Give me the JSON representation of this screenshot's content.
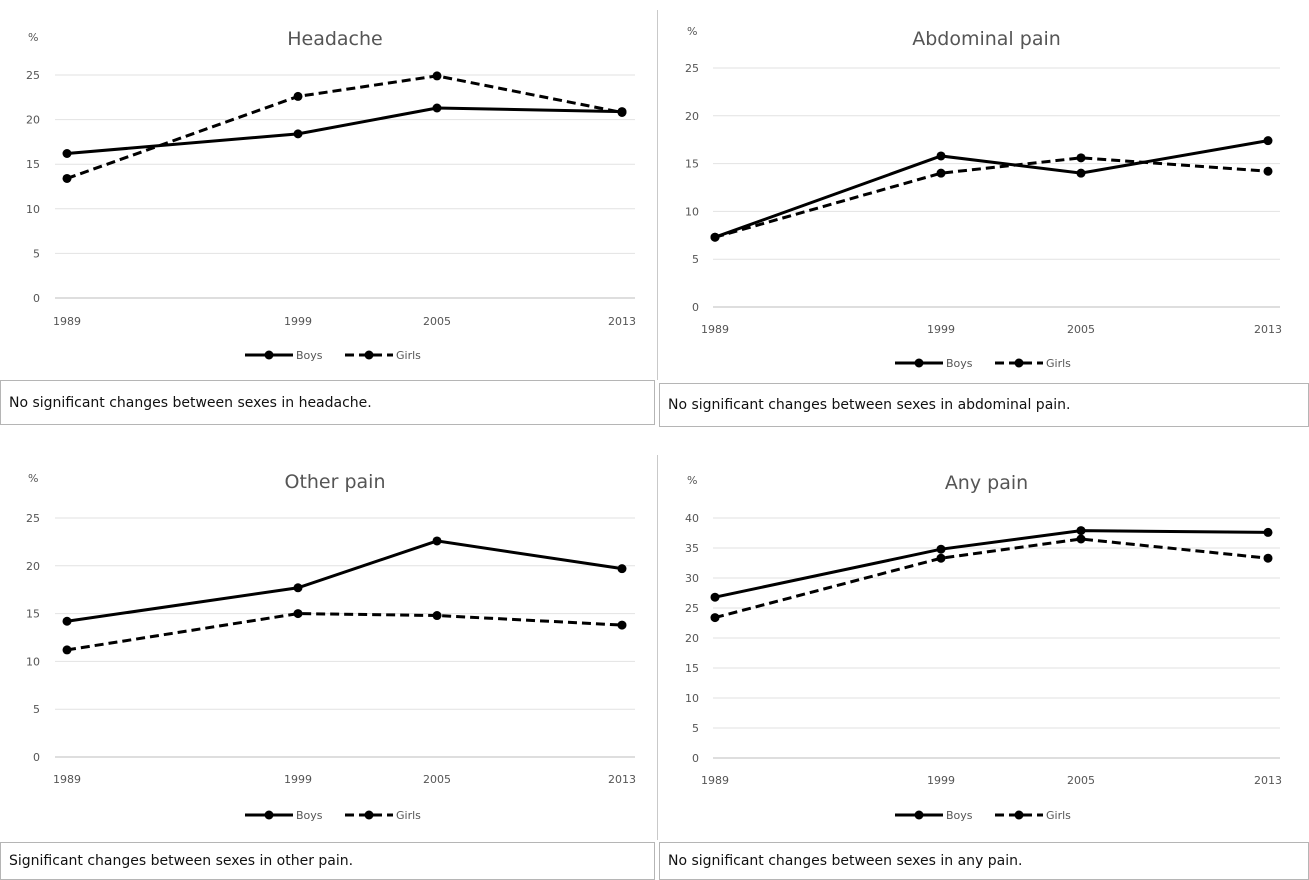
{
  "chart_data": [
    {
      "type": "line",
      "title": "Headache",
      "ylabel": "%",
      "x": [
        "1989",
        "1999",
        "2005",
        "2013"
      ],
      "ylim": [
        0,
        25
      ],
      "yticks": [
        "0",
        "5",
        "10",
        "15",
        "20",
        "25"
      ],
      "series": [
        {
          "name": "Boys",
          "style": "solid",
          "values": [
            16.2,
            18.4,
            21.3,
            20.9
          ]
        },
        {
          "name": "Girls",
          "style": "dashed",
          "values": [
            13.4,
            22.6,
            24.9,
            20.8
          ]
        }
      ],
      "legend_position": "bottom",
      "caption": "No significant changes between sexes in headache."
    },
    {
      "type": "line",
      "title": "Abdominal pain",
      "ylabel": "%",
      "x": [
        "1989",
        "1999",
        "2005",
        "2013"
      ],
      "ylim": [
        0,
        25
      ],
      "yticks": [
        "0",
        "5",
        "10",
        "15",
        "20",
        "25"
      ],
      "series": [
        {
          "name": "Boys",
          "style": "solid",
          "values": [
            7.3,
            15.8,
            14.0,
            17.4
          ]
        },
        {
          "name": "Girls",
          "style": "dashed",
          "values": [
            7.3,
            14.0,
            15.6,
            14.2
          ]
        }
      ],
      "legend_position": "bottom",
      "caption": "No significant changes between sexes in abdominal pain."
    },
    {
      "type": "line",
      "title": "Other pain",
      "ylabel": "%",
      "x": [
        "1989",
        "1999",
        "2005",
        "2013"
      ],
      "ylim": [
        0,
        25
      ],
      "yticks": [
        "0",
        "5",
        "10",
        "15",
        "20",
        "25"
      ],
      "series": [
        {
          "name": "Boys",
          "style": "solid",
          "values": [
            14.2,
            17.7,
            22.6,
            19.7
          ]
        },
        {
          "name": "Girls",
          "style": "dashed",
          "values": [
            11.2,
            15.0,
            14.8,
            13.8
          ]
        }
      ],
      "legend_position": "bottom",
      "caption": "Significant changes between sexes in other pain."
    },
    {
      "type": "line",
      "title": "Any pain",
      "ylabel": "%",
      "x": [
        "1989",
        "1999",
        "2005",
        "2013"
      ],
      "ylim": [
        0,
        40
      ],
      "yticks": [
        "0",
        "5",
        "10",
        "15",
        "20",
        "25",
        "30",
        "35",
        "40"
      ],
      "series": [
        {
          "name": "Boys",
          "style": "solid",
          "values": [
            26.8,
            34.8,
            37.9,
            37.6
          ]
        },
        {
          "name": "Girls",
          "style": "dashed",
          "values": [
            23.4,
            33.3,
            36.5,
            33.3
          ]
        }
      ],
      "legend_position": "bottom",
      "caption": "No significant changes between sexes in any pain."
    }
  ]
}
